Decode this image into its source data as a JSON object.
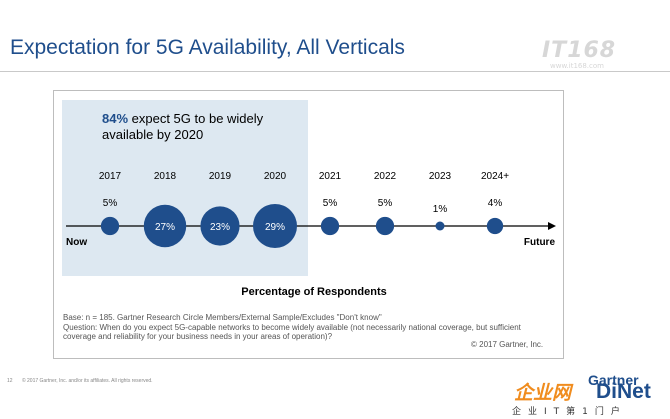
{
  "slide": {
    "title": "Expectation for 5G Availability, All Verticals",
    "watermark": {
      "brand": "IT168",
      "domain": "www.it168.com"
    },
    "headline": {
      "percent": "84%",
      "text": " expect 5G to be widely available by 2020"
    },
    "footnote": {
      "base": "Base: n = 185. Gartner Research Circle Members/External Sample/Excludes \"Don't know\"",
      "question": "Question: When do you expect 5G-capable networks to become widely available (not necessarily national coverage, but sufficient coverage and reliability for your business needs in your areas of operation)?"
    },
    "copyright": "© 2017 Gartner, Inc.",
    "page_footer": {
      "page_number": "12",
      "notice": "© 2017 Gartner, Inc. and/or its affiliates. All rights reserved."
    },
    "brand_logo": {
      "cn_text": "企业网",
      "gartner": "Gartner",
      "dinet": "DiNet",
      "tagline": "企业IT第1门户"
    }
  },
  "colors": {
    "title": "#1f4e8c",
    "bubble": "#1f4e8c",
    "highlight": "#dde8f1",
    "axis": "#000000"
  },
  "chart_data": {
    "type": "bubble-timeline",
    "title": "Percentage of Respondents",
    "categories": [
      "2017",
      "2018",
      "2019",
      "2020",
      "2021",
      "2022",
      "2023",
      "2024+"
    ],
    "values": [
      5,
      27,
      23,
      29,
      5,
      5,
      1,
      4
    ],
    "value_labels": [
      "5%",
      "27%",
      "23%",
      "29%",
      "5%",
      "5%",
      "1%",
      "4%"
    ],
    "axis_start_label": "Now",
    "axis_end_label": "Future",
    "highlighted_categories": [
      "2017",
      "2018",
      "2019",
      "2020"
    ]
  }
}
